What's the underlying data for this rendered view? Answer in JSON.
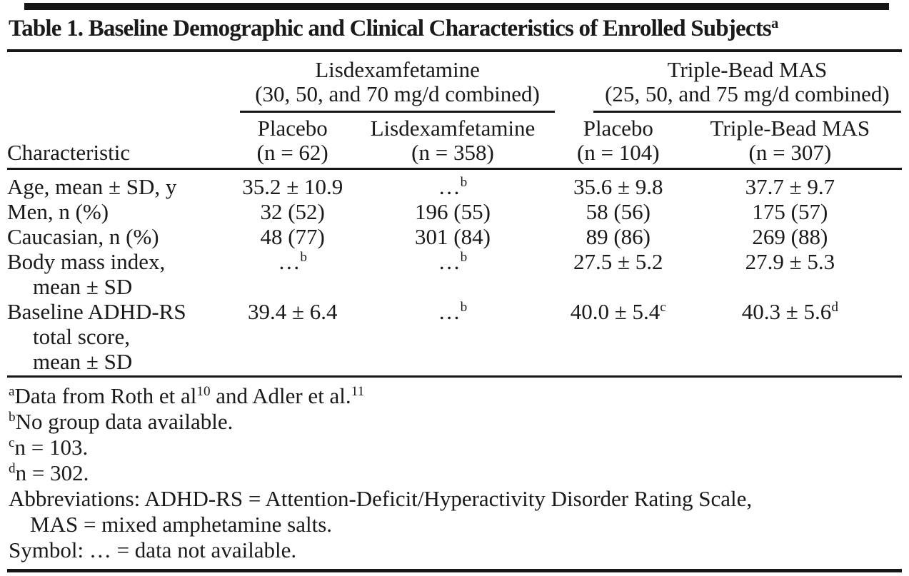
{
  "page": {
    "type": "journal-table-scan",
    "background": "#ffffff",
    "text_color": "#1a1a1a",
    "rule_color": "#161616"
  },
  "table": {
    "title": {
      "text": "Table 1. Baseline Demographic and Clinical Characteristics of Enrolled Subjects",
      "sup": "a"
    },
    "column_groups": [
      {
        "line1": "Lisdexamfetamine",
        "line2": "(30, 50, and 70 mg/d combined)"
      },
      {
        "line1": "Triple-Bead MAS",
        "line2": "(25, 50, and 75 mg/d combined)"
      }
    ],
    "columns": [
      {
        "line1": "",
        "line2": "Characteristic"
      },
      {
        "line1": "Placebo",
        "line2": "(n = 62)"
      },
      {
        "line1": "Lisdexamfetamine",
        "line2": "(n = 358)"
      },
      {
        "line1": "Placebo",
        "line2": "(n = 104)"
      },
      {
        "line1": "Triple-Bead MAS",
        "line2": "(n = 307)"
      }
    ],
    "rows": [
      {
        "label_lines": [
          "Age, mean ± SD, y"
        ],
        "cells": [
          {
            "text": "35.2 ± 10.9"
          },
          {
            "text": "…",
            "sup": "b"
          },
          {
            "text": "35.6 ± 9.8"
          },
          {
            "text": "37.7 ± 9.7"
          }
        ]
      },
      {
        "label_lines": [
          "Men, n (%)"
        ],
        "cells": [
          {
            "text": "32 (52)"
          },
          {
            "text": "196 (55)"
          },
          {
            "text": "58 (56)"
          },
          {
            "text": "175 (57)"
          }
        ]
      },
      {
        "label_lines": [
          "Caucasian, n (%)"
        ],
        "cells": [
          {
            "text": "48 (77)"
          },
          {
            "text": "301 (84)"
          },
          {
            "text": "89 (86)"
          },
          {
            "text": "269 (88)"
          }
        ]
      },
      {
        "label_lines": [
          "Body mass index,",
          "mean ± SD"
        ],
        "cells": [
          {
            "text": "…",
            "sup": "b"
          },
          {
            "text": "…",
            "sup": "b"
          },
          {
            "text": "27.5 ± 5.2"
          },
          {
            "text": "27.9 ± 5.3"
          }
        ]
      },
      {
        "label_lines": [
          "Baseline ADHD-RS",
          "total score,",
          "mean ± SD"
        ],
        "cells": [
          {
            "text": "39.4 ± 6.4"
          },
          {
            "text": "…",
            "sup": "b"
          },
          {
            "text": "40.0 ± 5.4",
            "sup": "c"
          },
          {
            "text": "40.3 ± 5.6",
            "sup": "d"
          }
        ]
      }
    ],
    "footnotes": [
      {
        "marker": "a",
        "segments": [
          {
            "text": "Data from Roth et al"
          },
          {
            "sup": "10"
          },
          {
            "text": " and Adler et al."
          },
          {
            "sup": "11"
          }
        ]
      },
      {
        "marker": "b",
        "segments": [
          {
            "text": "No group data available."
          }
        ]
      },
      {
        "marker": "c",
        "segments": [
          {
            "text": "n = 103."
          }
        ]
      },
      {
        "marker": "d",
        "segments": [
          {
            "text": "n = 302."
          }
        ]
      },
      {
        "segments": [
          {
            "text": "Abbreviations: ADHD-RS = Attention-Deficit/Hyperactivity Disorder Rating Scale,"
          }
        ]
      },
      {
        "indent": true,
        "segments": [
          {
            "text": "MAS = mixed amphetamine salts."
          }
        ]
      },
      {
        "segments": [
          {
            "text": "Symbol: … = data not available."
          }
        ]
      }
    ]
  }
}
